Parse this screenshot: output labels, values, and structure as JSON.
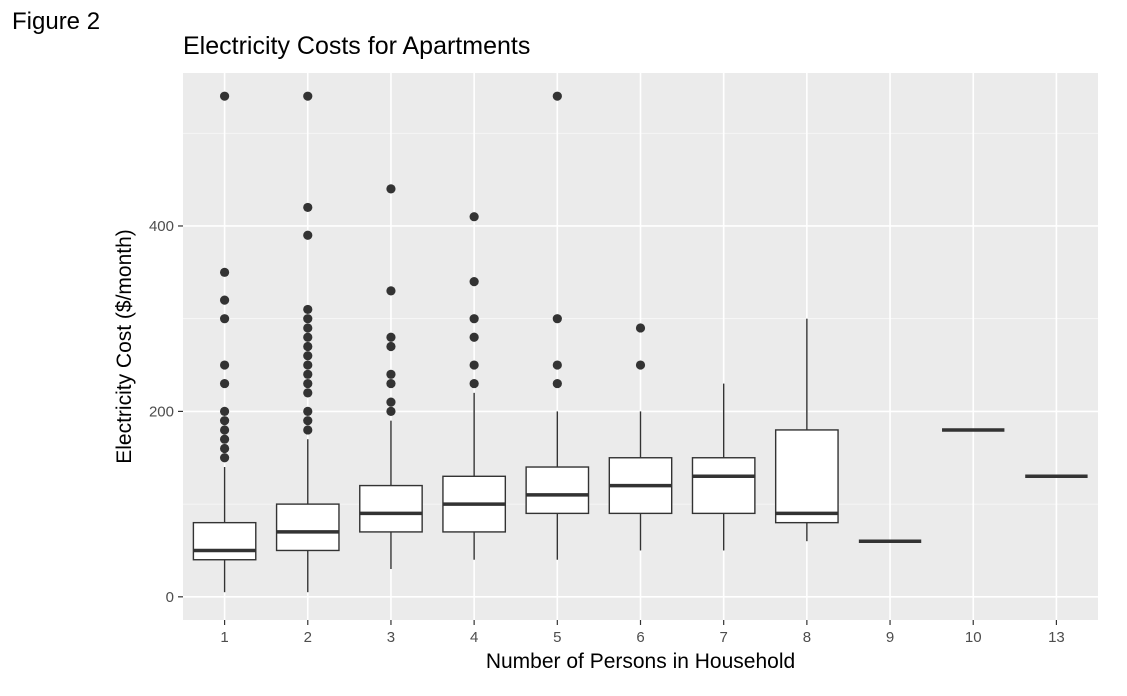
{
  "figure_label": "Figure 2",
  "chart_data": {
    "type": "boxplot",
    "title": "Electricity Costs for Apartments",
    "xlabel": "Number of Persons in Household",
    "ylabel": "Electricity Cost ($/month)",
    "ylim": [
      -25,
      565
    ],
    "yticks": [
      0,
      200,
      400
    ],
    "grid": true,
    "categories": [
      "1",
      "2",
      "3",
      "4",
      "5",
      "6",
      "7",
      "8",
      "9",
      "10",
      "13"
    ],
    "boxes": [
      {
        "category": "1",
        "min": 5,
        "q1": 40,
        "median": 50,
        "q3": 80,
        "max": 140,
        "outliers": [
          150,
          160,
          170,
          180,
          190,
          200,
          230,
          250,
          300,
          320,
          350,
          540
        ]
      },
      {
        "category": "2",
        "min": 5,
        "q1": 50,
        "median": 70,
        "q3": 100,
        "max": 170,
        "outliers": [
          180,
          190,
          200,
          220,
          230,
          240,
          250,
          260,
          270,
          280,
          290,
          300,
          310,
          390,
          420,
          540
        ]
      },
      {
        "category": "3",
        "min": 30,
        "q1": 70,
        "median": 90,
        "q3": 120,
        "max": 190,
        "outliers": [
          200,
          210,
          230,
          240,
          270,
          280,
          330,
          440
        ]
      },
      {
        "category": "4",
        "min": 40,
        "q1": 70,
        "median": 100,
        "q3": 130,
        "max": 220,
        "outliers": [
          230,
          250,
          280,
          300,
          340,
          410
        ]
      },
      {
        "category": "5",
        "min": 40,
        "q1": 90,
        "median": 110,
        "q3": 140,
        "max": 200,
        "outliers": [
          230,
          250,
          300,
          540
        ]
      },
      {
        "category": "6",
        "min": 50,
        "q1": 90,
        "median": 120,
        "q3": 150,
        "max": 200,
        "outliers": [
          250,
          290
        ]
      },
      {
        "category": "7",
        "min": 50,
        "q1": 90,
        "median": 130,
        "q3": 150,
        "max": 230,
        "outliers": []
      },
      {
        "category": "8",
        "min": 60,
        "q1": 80,
        "median": 90,
        "q3": 180,
        "max": 300,
        "outliers": []
      },
      {
        "category": "9",
        "min": 60,
        "q1": 60,
        "median": 60,
        "q3": 60,
        "max": 60,
        "outliers": []
      },
      {
        "category": "10",
        "min": 180,
        "q1": 180,
        "median": 180,
        "q3": 180,
        "max": 180,
        "outliers": []
      },
      {
        "category": "13",
        "min": 130,
        "q1": 130,
        "median": 130,
        "q3": 130,
        "max": 130,
        "outliers": []
      }
    ],
    "colors": {
      "panel": "#ebebeb",
      "grid_major": "#ffffff",
      "box_fill": "#ffffff",
      "stroke": "#333333",
      "outlier": "#333333"
    }
  }
}
